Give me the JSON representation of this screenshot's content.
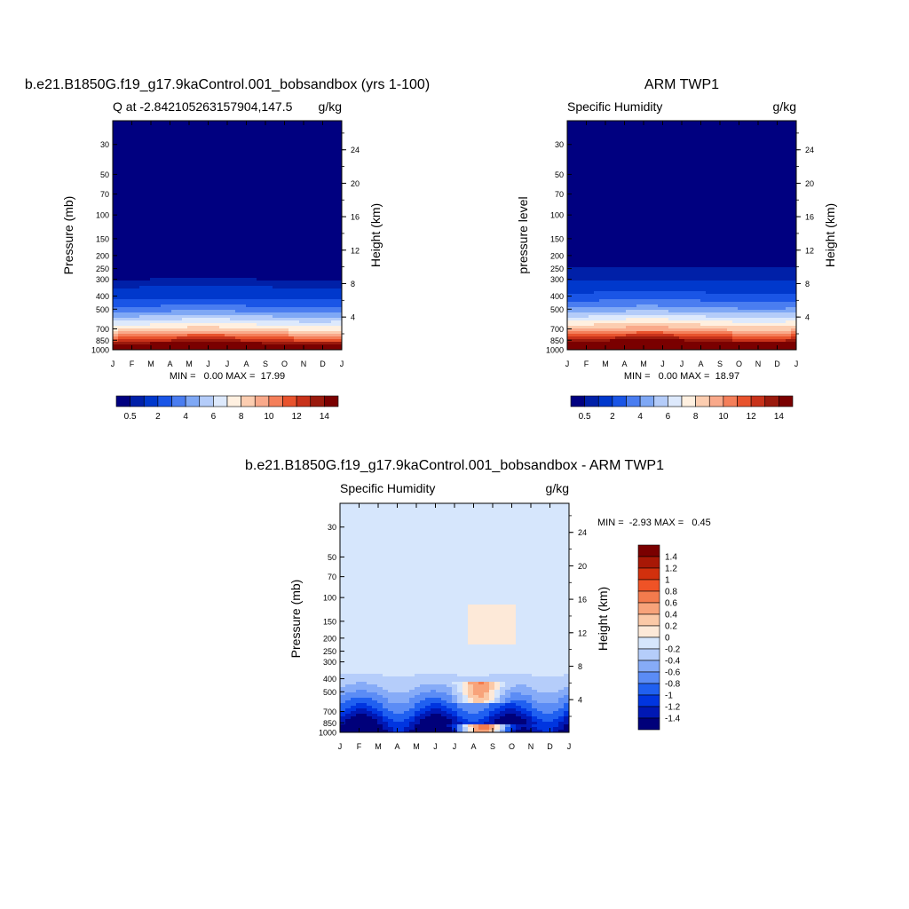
{
  "colors": {
    "abs_levels": [
      "#000080",
      "#0020a8",
      "#0038cc",
      "#1a55e6",
      "#4a7df0",
      "#7fa8f5",
      "#b4ccf9",
      "#dde9fc",
      "#fff0e0",
      "#fccdb0",
      "#f9a98a",
      "#f47f5a",
      "#e8532d",
      "#c8321a",
      "#9a1a0d",
      "#7a0000"
    ],
    "diff_levels": [
      "#00007a",
      "#0018b4",
      "#0035e0",
      "#2060f0",
      "#5b8cf5",
      "#86abf7",
      "#b5cdfa",
      "#d6e6fc",
      "#fde9d8",
      "#fbc9a7",
      "#f8a37a",
      "#f47b4d",
      "#ef5326",
      "#d2300d",
      "#a81806",
      "#7a0000"
    ]
  },
  "chart_data": [
    {
      "type": "heatmap",
      "title": "b.e21.B1850G.f19_g17.9kaControl.001_bobsandbox (yrs 1-100)",
      "left_subtitle": "Q at -2.842105263157904,147.5",
      "right_subtitle": "g/kg",
      "ylabel": "Pressure (mb)",
      "ylabel_right": "Height (km)",
      "x_ticks": [
        "J",
        "F",
        "M",
        "A",
        "M",
        "J",
        "J",
        "A",
        "S",
        "O",
        "N",
        "D",
        "J"
      ],
      "y_ticks": [
        "30",
        "50",
        "70",
        "100",
        "150",
        "200",
        "250",
        "300",
        "400",
        "500",
        "700",
        "850",
        "1000"
      ],
      "y_ticks_right": [
        "24",
        "20",
        "16",
        "12",
        "8",
        "4"
      ],
      "ylim": [
        1000,
        20
      ],
      "stats": "MIN =   0.00 MAX =  17.99",
      "min": 0.0,
      "max": 17.99,
      "colorbar_labels": [
        "0.5",
        "2",
        "4",
        "6",
        "8",
        "10",
        "12",
        "14"
      ],
      "profile_pressure": [
        1000,
        850,
        700,
        500,
        400,
        300,
        200,
        100,
        50,
        30
      ],
      "profile_q": [
        17.5,
        12.5,
        8.0,
        3.4,
        1.6,
        0.5,
        0.05,
        0.0,
        0.0,
        0.0
      ]
    },
    {
      "type": "heatmap",
      "title": "ARM TWP1",
      "left_subtitle": "Specific Humidity",
      "right_subtitle": "g/kg",
      "ylabel": "pressure level",
      "ylabel_right": "Height (km)",
      "x_ticks": [
        "J",
        "F",
        "M",
        "A",
        "M",
        "J",
        "J",
        "A",
        "S",
        "O",
        "N",
        "D",
        "J"
      ],
      "y_ticks": [
        "30",
        "50",
        "70",
        "100",
        "150",
        "200",
        "250",
        "300",
        "400",
        "500",
        "700",
        "850",
        "1000"
      ],
      "y_ticks_right": [
        "24",
        "20",
        "16",
        "12",
        "8",
        "4"
      ],
      "ylim": [
        1000,
        20
      ],
      "stats": "MIN =   0.00 MAX =  18.97",
      "min": 0.0,
      "max": 18.97,
      "colorbar_labels": [
        "0.5",
        "2",
        "4",
        "6",
        "8",
        "10",
        "12",
        "14"
      ],
      "profile_pressure": [
        1000,
        850,
        700,
        500,
        400,
        300,
        200,
        100,
        50,
        30
      ],
      "profile_q": [
        18.5,
        13.5,
        9.0,
        4.3,
        2.3,
        0.9,
        0.1,
        0.0,
        0.0,
        0.0
      ]
    },
    {
      "type": "heatmap",
      "title": "b.e21.B1850G.f19_g17.9kaControl.001_bobsandbox - ARM TWP1",
      "left_subtitle": "Specific Humidity",
      "right_subtitle": "g/kg",
      "ylabel": "Pressure (mb)",
      "ylabel_right": "Height (km)",
      "x_ticks": [
        "J",
        "F",
        "M",
        "A",
        "M",
        "J",
        "J",
        "A",
        "S",
        "O",
        "N",
        "D",
        "J"
      ],
      "y_ticks": [
        "30",
        "50",
        "70",
        "100",
        "150",
        "200",
        "250",
        "300",
        "400",
        "500",
        "700",
        "850",
        "1000"
      ],
      "y_ticks_right": [
        "24",
        "20",
        "16",
        "12",
        "8",
        "4"
      ],
      "ylim": [
        1000,
        20
      ],
      "stats": "MIN =  -2.93 MAX =   0.45",
      "min": -2.93,
      "max": 0.45,
      "colorbar_labels": [
        "1.4",
        "1.2",
        "1",
        "0.8",
        "0.6",
        "0.4",
        "0.2",
        "0",
        "-0.2",
        "-0.4",
        "-0.6",
        "-0.8",
        "-1",
        "-1.2",
        "-1.4"
      ]
    }
  ]
}
